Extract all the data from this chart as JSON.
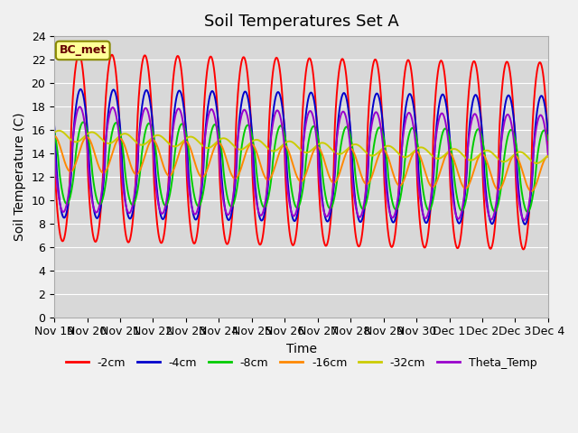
{
  "title": "Soil Temperatures Set A",
  "xlabel": "Time",
  "ylabel": "Soil Temperature (C)",
  "ylim": [
    0,
    24
  ],
  "fig_bg_color": "#f0f0f0",
  "plot_bg_color": "#d8d8d8",
  "annotation": "BC_met",
  "legend_labels": [
    "-2cm",
    "-4cm",
    "-8cm",
    "-16cm",
    "-32cm",
    "Theta_Temp"
  ],
  "legend_colors": [
    "#ff0000",
    "#0000cc",
    "#00cc00",
    "#ff8800",
    "#cccc00",
    "#9900cc"
  ],
  "xtick_labels": [
    "Nov 19",
    "Nov 20",
    "Nov 21",
    "Nov 22",
    "Nov 23",
    "Nov 24",
    "Nov 25",
    "Nov 26",
    "Nov 27",
    "Nov 28",
    "Nov 29",
    "Nov 30",
    "Dec 1",
    "Dec 2",
    "Dec 3",
    "Dec 4"
  ],
  "title_fontsize": 13,
  "axis_label_fontsize": 10,
  "tick_fontsize": 9
}
